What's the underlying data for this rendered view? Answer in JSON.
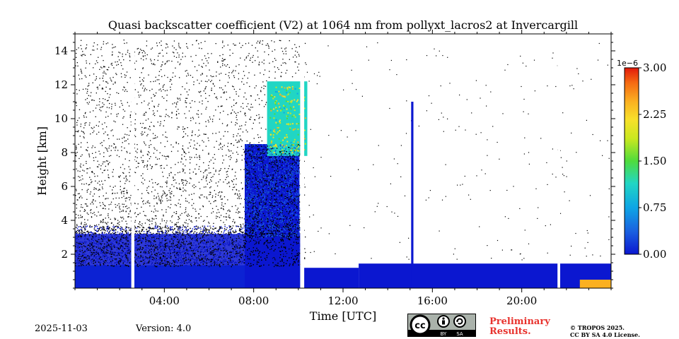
{
  "chart_data": {
    "type": "heatmap",
    "title": "Quasi backscatter coefficient (V2) at 1064 nm from pollyxt_lacros2 at Invercargill",
    "xlabel": "Time [UTC]",
    "ylabel": "Height [km]",
    "x_range_hours": [
      0,
      24
    ],
    "y_range_km": [
      0,
      15
    ],
    "x_ticks": [
      {
        "value": 4,
        "label": "04:00"
      },
      {
        "value": 8,
        "label": "08:00"
      },
      {
        "value": 12,
        "label": "12:00"
      },
      {
        "value": 16,
        "label": "16:00"
      },
      {
        "value": 20,
        "label": "20:00"
      }
    ],
    "y_ticks": [
      {
        "value": 2,
        "label": "2"
      },
      {
        "value": 4,
        "label": "4"
      },
      {
        "value": 6,
        "label": "6"
      },
      {
        "value": 8,
        "label": "8"
      },
      {
        "value": 10,
        "label": "10"
      },
      {
        "value": 12,
        "label": "12"
      },
      {
        "value": 14,
        "label": "14"
      }
    ],
    "colorbar": {
      "exponent_label": "1e−6",
      "range": [
        0,
        3.0
      ],
      "ticks": [
        {
          "value": 0.0,
          "label": "0.00"
        },
        {
          "value": 0.75,
          "label": "0.75"
        },
        {
          "value": 1.5,
          "label": "1.50"
        },
        {
          "value": 2.25,
          "label": "2.25"
        },
        {
          "value": 3.0,
          "label": "3.00"
        }
      ],
      "colors": [
        "#0b17d0",
        "#1a5fe0",
        "#0ea5e5",
        "#21d6c4",
        "#4fdc3c",
        "#c9e820",
        "#f7e12a",
        "#fbb021",
        "#f56a12",
        "#e2190b"
      ]
    },
    "data_gaps_hours": [
      [
        2.52,
        2.66
      ],
      [
        10.08,
        10.26
      ],
      [
        21.6,
        21.72
      ]
    ],
    "segments": [
      {
        "name": "aerosol-layer",
        "x": [
          0,
          10.1
        ],
        "y_top_km": 1.35,
        "value": 0.35
      },
      {
        "name": "aerosol-layer",
        "x": [
          10.1,
          12.7
        ],
        "y_top_km": 1.2,
        "value": 0.3
      },
      {
        "name": "aerosol-layer",
        "x": [
          12.7,
          24
        ],
        "y_top_km": 1.45,
        "value": 0.25
      },
      {
        "name": "upper-aerosol",
        "x": [
          0,
          10.1
        ],
        "y_top_km": 3.2,
        "value": 0.12
      },
      {
        "name": "deep-cloud",
        "x": [
          7.6,
          10.05
        ],
        "y_top_km": 8.5,
        "value": 0.22
      },
      {
        "name": "cirrus",
        "x": [
          8.6,
          10.4
        ],
        "y_top_km": 12.2,
        "value": 1.1
      },
      {
        "name": "precip-shaft",
        "x": [
          15.05,
          15.15
        ],
        "y_top_km": 11.0,
        "value": 0.2
      },
      {
        "name": "near-ground-enhancement",
        "x": [
          22.6,
          24
        ],
        "y_top_km": 0.5,
        "value": 2.2
      }
    ]
  },
  "footer": {
    "date": "2025-11-03",
    "version": "Version: 4.0",
    "cc_label_by": "BY",
    "cc_label_sa": "SA",
    "cc_label_cc": "cc",
    "preliminary_line1": "Preliminary",
    "preliminary_line2": "Results.",
    "copyright_line1": "© TROPOS 2025.",
    "copyright_line2": "CC BY SA 4.0 License."
  }
}
